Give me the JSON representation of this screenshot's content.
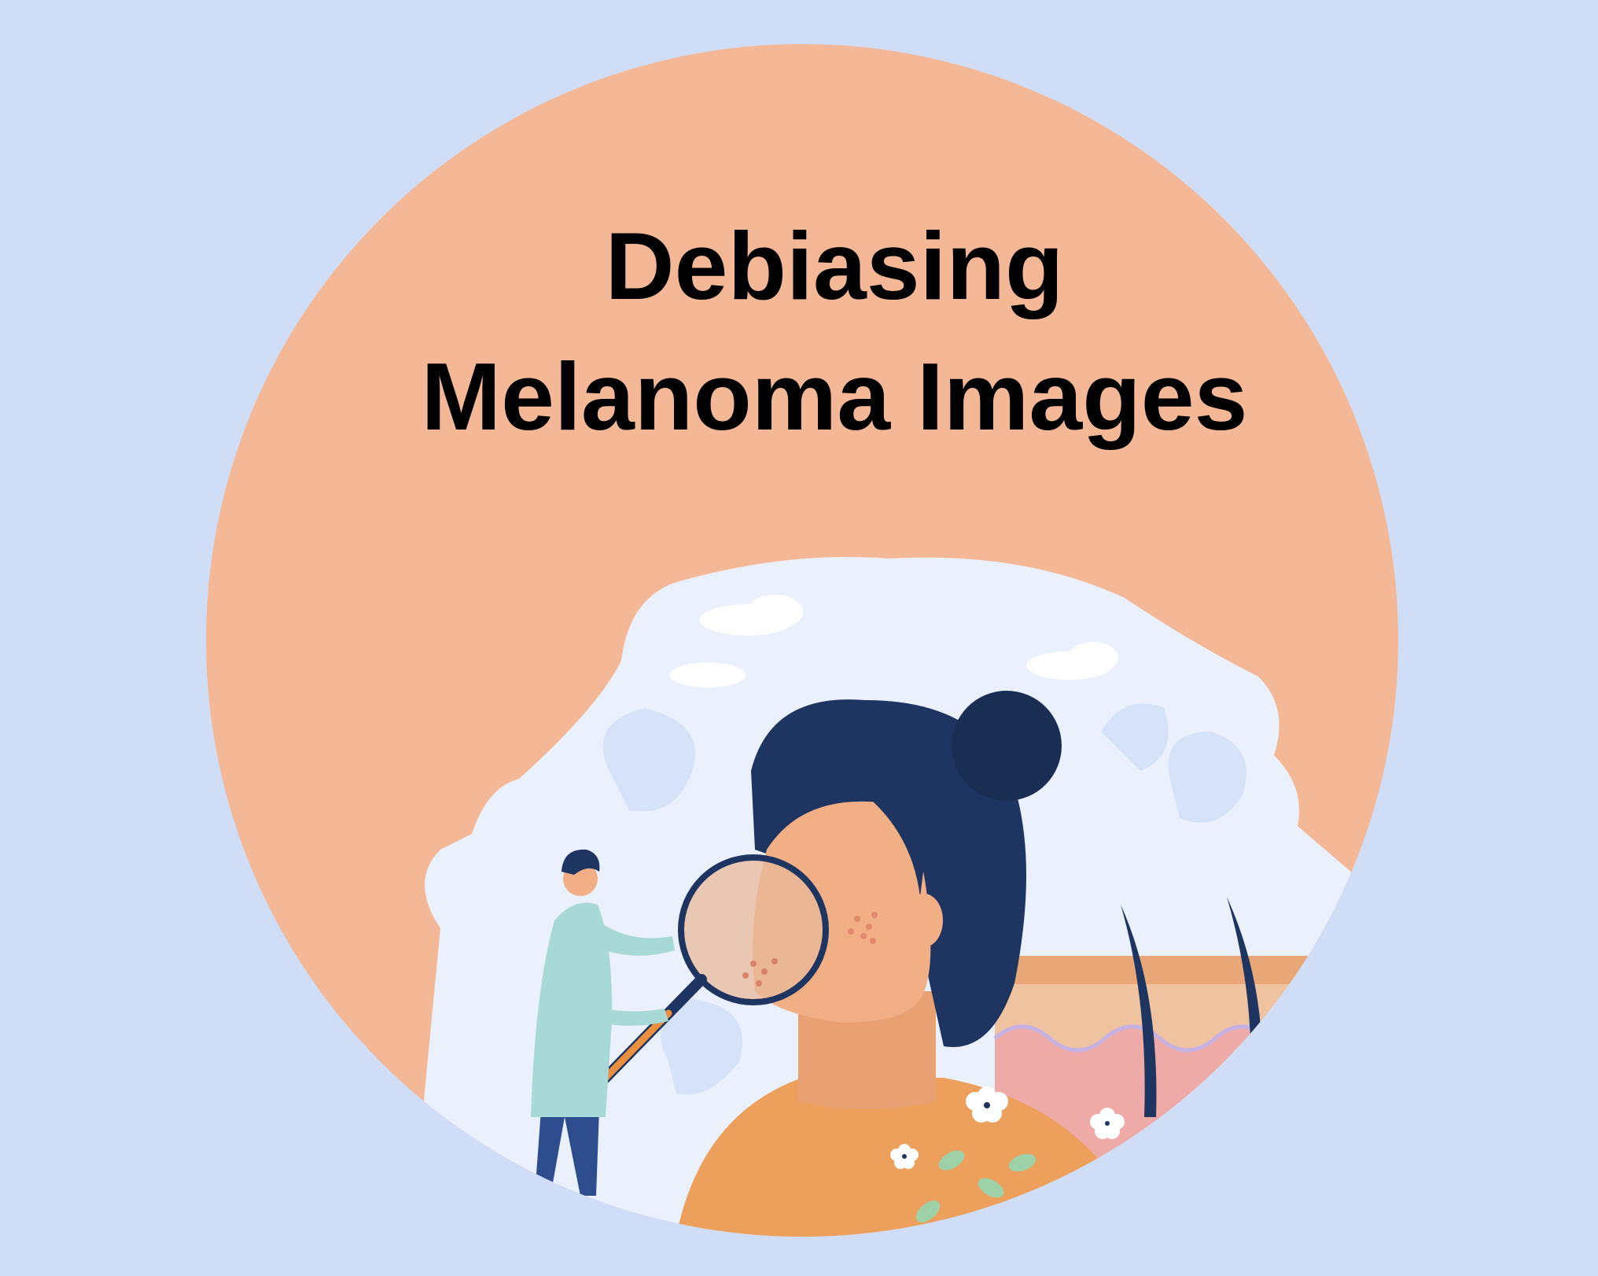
{
  "title": {
    "line1": "Debiasing",
    "line2": "Melanoma Images"
  },
  "colors": {
    "background": "#cfddf7",
    "circle": "#f4b896",
    "scene": "#eaf1fd",
    "hair": "#1f3561",
    "skin": "#f2ae84",
    "sweater": "#eca05c",
    "coat": "#a9d9d6"
  },
  "illustration": {
    "subject": "doctor with magnifying glass examining freckles on a woman's face, skin layer cross-section, flowers and leaves",
    "icons": [
      "magnifier-icon",
      "flower-icon",
      "leaf-icon",
      "cloud-icon",
      "skin-layer-icon"
    ]
  }
}
